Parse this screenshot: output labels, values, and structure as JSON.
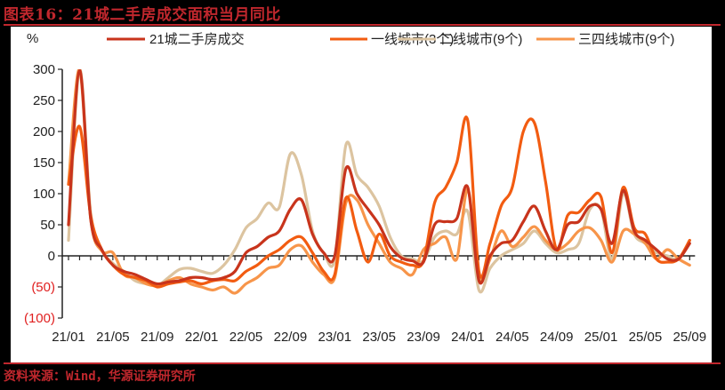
{
  "title": "图表16：21城二手房成交面积当月同比",
  "source": "资料来源：Wind，华源证券研究所",
  "chart_data": {
    "type": "line",
    "title": "21城二手房成交面积当月同比",
    "ylabel": "%",
    "xlabel": "",
    "ylim": [
      -100,
      300
    ],
    "yticks": [
      300,
      250,
      200,
      150,
      100,
      50,
      0,
      -50,
      -100
    ],
    "ytick_labels": [
      "300",
      "250",
      "200",
      "150",
      "100",
      "50",
      "0",
      "(50)",
      "(100)"
    ],
    "xtick_labels": [
      "21/01",
      "21/05",
      "21/09",
      "22/01",
      "22/05",
      "22/09",
      "23/01",
      "23/05",
      "23/09",
      "24/01",
      "24/05",
      "24/09",
      "25/01",
      "25/05",
      "25/09"
    ],
    "grid": false,
    "legend_position": "top",
    "x": [
      "21/01",
      "21/02",
      "21/03",
      "21/04",
      "21/05",
      "21/06",
      "21/07",
      "21/08",
      "21/09",
      "21/10",
      "21/11",
      "21/12",
      "22/01",
      "22/02",
      "22/03",
      "22/04",
      "22/05",
      "22/06",
      "22/07",
      "22/08",
      "22/09",
      "22/10",
      "22/11",
      "22/12",
      "23/01",
      "23/02",
      "23/03",
      "23/04",
      "23/05",
      "23/06",
      "23/07",
      "23/08",
      "23/09",
      "23/10",
      "23/11",
      "23/12",
      "24/01",
      "24/02",
      "24/03",
      "24/04",
      "24/05",
      "24/06",
      "24/07",
      "24/08",
      "24/09",
      "24/10",
      "24/11",
      "24/12",
      "25/01",
      "25/02",
      "25/03",
      "25/04",
      "25/05",
      "25/06",
      "25/07",
      "25/08",
      "25/09"
    ],
    "series": [
      {
        "name": "21城二手房成交",
        "color": "#c8341c",
        "values": [
          50,
          298,
          60,
          10,
          -15,
          -25,
          -30,
          -38,
          -45,
          -42,
          -40,
          -35,
          -35,
          -38,
          -35,
          -25,
          5,
          15,
          30,
          40,
          75,
          90,
          35,
          5,
          0,
          140,
          100,
          75,
          50,
          15,
          -3,
          -8,
          -10,
          50,
          55,
          60,
          110,
          -40,
          0,
          20,
          25,
          55,
          80,
          40,
          10,
          50,
          55,
          80,
          75,
          20,
          105,
          40,
          25,
          10,
          -5,
          -5,
          20
        ]
      },
      {
        "name": "一线城市(3个)",
        "color": "#f25c11",
        "values": [
          115,
          208,
          65,
          10,
          -15,
          -30,
          -35,
          -40,
          -50,
          -45,
          -42,
          -40,
          -45,
          -40,
          -38,
          -40,
          -25,
          -15,
          0,
          10,
          25,
          30,
          5,
          -25,
          -30,
          93,
          40,
          -10,
          35,
          0,
          -10,
          -15,
          -8,
          85,
          110,
          150,
          217,
          -25,
          20,
          80,
          110,
          200,
          214,
          120,
          10,
          65,
          70,
          90,
          95,
          5,
          110,
          45,
          35,
          -5,
          -10,
          -5,
          25
        ]
      },
      {
        "name": "二线城市(9个)",
        "color": "#dcc4a0",
        "values": [
          25,
          300,
          70,
          10,
          -12,
          -25,
          -40,
          -45,
          -48,
          -35,
          -22,
          -20,
          -25,
          -28,
          -15,
          10,
          45,
          60,
          85,
          78,
          164,
          130,
          40,
          5,
          -5,
          178,
          130,
          110,
          80,
          30,
          0,
          -5,
          -8,
          30,
          40,
          35,
          71,
          -55,
          -20,
          0,
          10,
          20,
          40,
          20,
          5,
          10,
          20,
          75,
          75,
          -5,
          100,
          35,
          20,
          5,
          0,
          -5,
          25
        ]
      },
      {
        "name": "三四线城市(9个)",
        "color": "#f7954a",
        "values": [
          115,
          300,
          60,
          8,
          5,
          -30,
          -35,
          -45,
          -48,
          -40,
          -35,
          -45,
          -50,
          -55,
          -50,
          -60,
          -45,
          -35,
          -20,
          -15,
          10,
          16,
          -10,
          -30,
          -35,
          85,
          90,
          50,
          20,
          -10,
          -20,
          -30,
          10,
          20,
          30,
          -5,
          107,
          -35,
          -5,
          40,
          15,
          30,
          47,
          25,
          10,
          20,
          40,
          45,
          25,
          -10,
          40,
          35,
          20,
          -5,
          10,
          -5,
          -15
        ]
      }
    ]
  }
}
